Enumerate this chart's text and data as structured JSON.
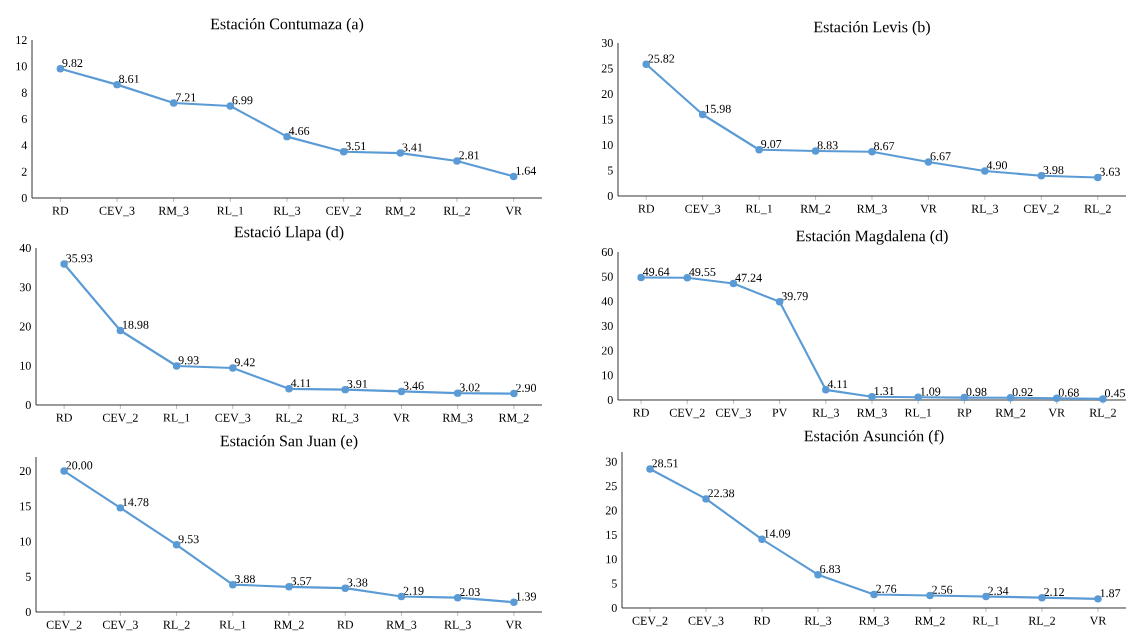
{
  "chart_data": [
    {
      "type": "line",
      "title": "Estación Contumaza (a)",
      "categories": [
        "RD",
        "CEV_3",
        "RM_3",
        "RL_1",
        "RL_3",
        "CEV_2",
        "RM_2",
        "RL_2",
        "VR"
      ],
      "values": [
        9.82,
        8.61,
        7.21,
        6.99,
        4.66,
        3.51,
        3.41,
        2.81,
        1.64
      ],
      "value_labels": [
        "9.82",
        "8.61",
        "7.21",
        "6.99",
        "4.66",
        "3.51",
        "3.41",
        "2.81",
        "1.64"
      ],
      "color": "#5b9bd5",
      "marker": "circle",
      "ylim": [
        0,
        12
      ],
      "yticks": [
        0,
        2,
        4,
        6,
        8,
        10,
        12
      ]
    },
    {
      "type": "line",
      "title": "Estación Levis (b)",
      "categories": [
        "RD",
        "CEV_3",
        "RL_1",
        "RM_2",
        "RM_3",
        "VR",
        "RL_3",
        "CEV_2",
        "RL_2"
      ],
      "values": [
        25.82,
        15.98,
        9.07,
        8.83,
        8.67,
        6.67,
        4.9,
        3.98,
        3.63
      ],
      "value_labels": [
        "25.82",
        "15.98",
        "9.07",
        "8.83",
        "8.67",
        "6.67",
        "4.90",
        "3.98",
        "3.63"
      ],
      "color": "#5b9bd5",
      "marker": "circle",
      "ylim": [
        0,
        30
      ],
      "yticks": [
        0,
        5,
        10,
        15,
        20,
        25,
        30
      ]
    },
    {
      "type": "line",
      "title": "Estació Llapa (d)",
      "categories": [
        "RD",
        "CEV_2",
        "RL_1",
        "CEV_3",
        "RL_2",
        "RL_3",
        "VR",
        "RM_3",
        "RM_2"
      ],
      "values": [
        35.93,
        18.98,
        9.93,
        9.42,
        4.11,
        3.91,
        3.46,
        3.02,
        2.9
      ],
      "value_labels": [
        "35.93",
        "18.98",
        "9.93",
        "9.42",
        "4.11",
        "3.91",
        "3.46",
        "3.02",
        "2.90"
      ],
      "color": "#5b9bd5",
      "marker": "circle",
      "ylim": [
        0,
        40
      ],
      "yticks": [
        0,
        10,
        20,
        30,
        40
      ]
    },
    {
      "type": "line",
      "title": "Estación Magdalena (d)",
      "categories": [
        "RD",
        "CEV_2",
        "CEV_3",
        "PV",
        "RL_3",
        "RM_3",
        "RL_1",
        "RP",
        "RM_2",
        "VR",
        "RL_2"
      ],
      "values": [
        49.64,
        49.55,
        47.24,
        39.79,
        4.11,
        1.31,
        1.09,
        0.98,
        0.92,
        0.68,
        0.45
      ],
      "value_labels": [
        "49.64",
        "49.55",
        "47.24",
        "39.79",
        "4.11",
        "1.31",
        "1.09",
        "0.98",
        "0.92",
        "0.68",
        "0.45"
      ],
      "color": "#5b9bd5",
      "marker": "circle",
      "ylim": [
        0,
        60
      ],
      "yticks": [
        0,
        10,
        20,
        30,
        40,
        50,
        60
      ]
    },
    {
      "type": "line",
      "title": "Estación San Juan (e)",
      "categories": [
        "CEV_2",
        "CEV_3",
        "RL_2",
        "RL_1",
        "RM_2",
        "RD",
        "RM_3",
        "RL_3",
        "VR"
      ],
      "values": [
        20.0,
        14.78,
        9.53,
        3.88,
        3.57,
        3.38,
        2.19,
        2.03,
        1.39
      ],
      "value_labels": [
        "20.00",
        "14.78",
        "9.53",
        "3.88",
        "3.57",
        "3.38",
        "2.19",
        "2.03",
        "1.39"
      ],
      "color": "#5b9bd5",
      "marker": "circle",
      "ylim": [
        0,
        22
      ],
      "yticks": [
        0,
        5,
        10,
        15,
        20
      ]
    },
    {
      "type": "line",
      "title": "Estación Asunción (f)",
      "categories": [
        "CEV_2",
        "CEV_3",
        "RD",
        "RL_3",
        "RM_3",
        "RM_2",
        "RL_1",
        "RL_2",
        "VR"
      ],
      "values": [
        28.51,
        22.38,
        14.09,
        6.83,
        2.76,
        2.56,
        2.34,
        2.12,
        1.87
      ],
      "value_labels": [
        "28.51",
        "22.38",
        "14.09",
        "6.83",
        "2.76",
        "2.56",
        "2.34",
        "2.12",
        "1.87"
      ],
      "color": "#5b9bd5",
      "marker": "circle",
      "ylim": [
        0,
        32
      ],
      "yticks": [
        0,
        5,
        10,
        15,
        20,
        25,
        30
      ]
    }
  ]
}
